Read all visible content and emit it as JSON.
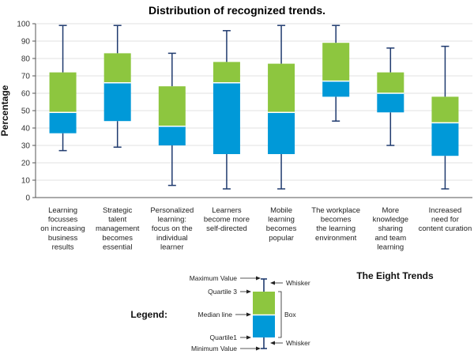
{
  "chart_data": {
    "type": "boxplot",
    "title": "Distribution of recognized trends.",
    "ylabel": "Percentage",
    "xlabel": "The Eight Trends",
    "ylim": [
      0,
      100
    ],
    "yticks": [
      0,
      10,
      20,
      30,
      40,
      50,
      60,
      70,
      80,
      90,
      100
    ],
    "colors": {
      "upper": "#8dc63f",
      "lower": "#0099d8",
      "whisker": "#1f3a6e",
      "axis": "#555555"
    },
    "categories": [
      [
        "Learning",
        "focusses",
        "on increasing",
        "business",
        "results"
      ],
      [
        "Strategic",
        "talent",
        "management",
        "becomes",
        "essential"
      ],
      [
        "Personalized",
        "learning:",
        "focus on the",
        "individual",
        "learner"
      ],
      [
        "Learners",
        "become more",
        "self-directed"
      ],
      [
        "Mobile",
        "learning",
        "becomes",
        "popular"
      ],
      [
        "The workplace",
        "becomes",
        "the learning",
        "environment"
      ],
      [
        "More",
        "knowledge",
        "sharing",
        "and team",
        "learning"
      ],
      [
        "Increased",
        "need for",
        "content curation"
      ]
    ],
    "boxes": [
      {
        "min": 27,
        "q1": 37,
        "median": 49,
        "q3": 72,
        "max": 99
      },
      {
        "min": 29,
        "q1": 44,
        "median": 66,
        "q3": 83,
        "max": 99
      },
      {
        "min": 7,
        "q1": 30,
        "median": 41,
        "q3": 64,
        "max": 83
      },
      {
        "min": 5,
        "q1": 25,
        "median": 66,
        "q3": 78,
        "max": 96
      },
      {
        "min": 5,
        "q1": 25,
        "median": 49,
        "q3": 77,
        "max": 99
      },
      {
        "min": 44,
        "q1": 58,
        "median": 67,
        "q3": 89,
        "max": 99
      },
      {
        "min": 30,
        "q1": 49,
        "median": 60,
        "q3": 72,
        "max": 86
      },
      {
        "min": 5,
        "q1": 24,
        "median": 43,
        "q3": 58,
        "max": 87
      }
    ],
    "legend": {
      "title": "Legend:",
      "maximum": "Maximum Value",
      "q3": "Quartile 3",
      "median": "Median line",
      "q1": "Quartile1",
      "minimum": "Minimum Value",
      "whisker": "Whisker",
      "box": "Box"
    }
  }
}
